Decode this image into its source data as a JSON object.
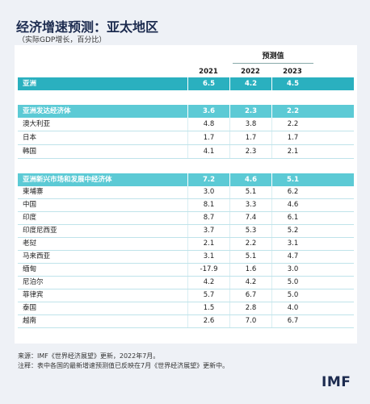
{
  "header": {
    "title": "经济增速预测：亚太地区",
    "subtitle": "（实际GDP增长，百分比）"
  },
  "table": {
    "projection_label": "预测值",
    "years": [
      "2021",
      "2022",
      "2023"
    ],
    "sections": [
      {
        "name": "亚洲",
        "values": [
          "6.5",
          "4.2",
          "4.5"
        ],
        "countries": []
      },
      {
        "name": "亚洲发达经济体",
        "values": [
          "3.6",
          "2.3",
          "2.2"
        ],
        "countries": [
          {
            "name": "澳大利亚",
            "values": [
              "4.8",
              "3.8",
              "2.2"
            ]
          },
          {
            "name": "日本",
            "values": [
              "1.7",
              "1.7",
              "1.7"
            ]
          },
          {
            "name": "韩国",
            "values": [
              "4.1",
              "2.3",
              "2.1"
            ]
          }
        ]
      },
      {
        "name": "亚洲新兴市场和发展中经济体",
        "values": [
          "7.2",
          "4.6",
          "5.1"
        ],
        "countries": [
          {
            "name": "柬埔寨",
            "values": [
              "3.0",
              "5.1",
              "6.2"
            ]
          },
          {
            "name": "中国",
            "values": [
              "8.1",
              "3.3",
              "4.6"
            ]
          },
          {
            "name": "印度",
            "values": [
              "8.7",
              "7.4",
              "6.1"
            ]
          },
          {
            "name": "印度尼西亚",
            "values": [
              "3.7",
              "5.3",
              "5.2"
            ]
          },
          {
            "name": "老挝",
            "values": [
              "2.1",
              "2.2",
              "3.1"
            ]
          },
          {
            "name": "马来西亚",
            "values": [
              "3.1",
              "5.1",
              "4.7"
            ]
          },
          {
            "name": "缅甸",
            "values": [
              "-17.9",
              "1.6",
              "3.0"
            ]
          },
          {
            "name": "尼泊尔",
            "values": [
              "4.2",
              "4.2",
              "5.0"
            ]
          },
          {
            "name": "菲律宾",
            "values": [
              "5.7",
              "6.7",
              "5.0"
            ]
          },
          {
            "name": "泰国",
            "values": [
              "1.5",
              "2.8",
              "4.0"
            ]
          },
          {
            "name": "越南",
            "values": [
              "2.6",
              "7.0",
              "6.7"
            ]
          }
        ]
      }
    ]
  },
  "footer": {
    "source": "来源：IMF《世界经济展望》更新，2022年7月。",
    "note": "注释：表中各国的最新增速预测值已反映在7月《世界经济展望》更新中。",
    "logo": "IMF"
  }
}
